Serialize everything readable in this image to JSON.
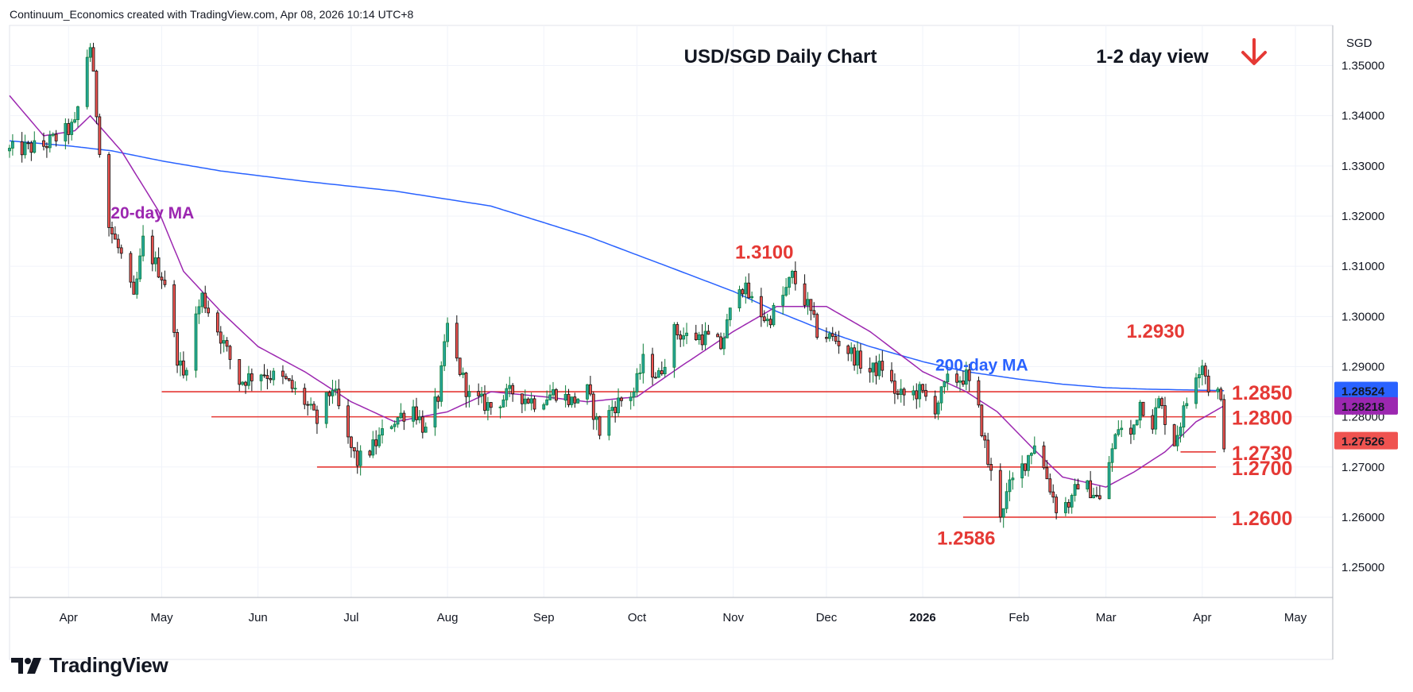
{
  "credit": "Continuum_Economics created with TradingView.com, Apr 08, 2026 10:14 UTC+8",
  "brand": "TradingView",
  "colors": {
    "up": "#26a69a",
    "down": "#ef5350",
    "ma20": "#9c27b0",
    "ma200": "#2962ff",
    "level": "#e53935",
    "annotation": "#e53935",
    "arrow": "#e53935",
    "badge_current": "#ef5350",
    "badge_ma200": "#2962ff",
    "badge_ma20": "#9c27b0",
    "grid": "#f0f3fa",
    "candle_up": "#0d7d3a",
    "candle_down": "#111111"
  },
  "chart_data": {
    "type": "candlestick",
    "title": "USD/SGD Daily Chart",
    "view_label": "1-2 day view",
    "view_direction": "down-arrow-icon",
    "currency_label": "SGD",
    "ylim": [
      1.244,
      1.358
    ],
    "yticks": [
      "1.25000",
      "1.26000",
      "1.27000",
      "1.28000",
      "1.29000",
      "1.30000",
      "1.31000",
      "1.32000",
      "1.33000",
      "1.34000",
      "1.35000"
    ],
    "xlim": [
      "2025-03-13",
      "2026-05-13"
    ],
    "xticks": [
      {
        "date": "2025-04-01",
        "label": "Apr"
      },
      {
        "date": "2025-05-01",
        "label": "May"
      },
      {
        "date": "2025-06-01",
        "label": "Jun"
      },
      {
        "date": "2025-07-01",
        "label": "Jul"
      },
      {
        "date": "2025-08-01",
        "label": "Aug"
      },
      {
        "date": "2025-09-01",
        "label": "Sep"
      },
      {
        "date": "2025-10-01",
        "label": "Oct"
      },
      {
        "date": "2025-11-01",
        "label": "Nov"
      },
      {
        "date": "2025-12-01",
        "label": "Dec"
      },
      {
        "date": "2026-01-01",
        "label": "2026",
        "bold": true
      },
      {
        "date": "2026-02-01",
        "label": "Feb"
      },
      {
        "date": "2026-03-01",
        "label": "Mar"
      },
      {
        "date": "2026-04-01",
        "label": "Apr"
      },
      {
        "date": "2026-05-01",
        "label": "May"
      }
    ],
    "price_anchors": [
      [
        "2025-03-13",
        1.333
      ],
      [
        "2025-03-24",
        1.334
      ],
      [
        "2025-04-03",
        1.338
      ],
      [
        "2025-04-07",
        1.352
      ],
      [
        "2025-04-08",
        1.354
      ],
      [
        "2025-04-11",
        1.334
      ],
      [
        "2025-04-14",
        1.318
      ],
      [
        "2025-04-18",
        1.312
      ],
      [
        "2025-04-22",
        1.303
      ],
      [
        "2025-04-25",
        1.315
      ],
      [
        "2025-05-02",
        1.307
      ],
      [
        "2025-05-06",
        1.292
      ],
      [
        "2025-05-08",
        1.288
      ],
      [
        "2025-05-12",
        1.3
      ],
      [
        "2025-05-14",
        1.304
      ],
      [
        "2025-05-20",
        1.296
      ],
      [
        "2025-05-26",
        1.287
      ],
      [
        "2025-06-02",
        1.289
      ],
      [
        "2025-06-10",
        1.287
      ],
      [
        "2025-06-16",
        1.283
      ],
      [
        "2025-06-20",
        1.279
      ],
      [
        "2025-06-25",
        1.286
      ],
      [
        "2025-06-30",
        1.275
      ],
      [
        "2025-07-03",
        1.271
      ],
      [
        "2025-07-08",
        1.274
      ],
      [
        "2025-07-14",
        1.279
      ],
      [
        "2025-07-21",
        1.282
      ],
      [
        "2025-07-25",
        1.277
      ],
      [
        "2025-07-29",
        1.284
      ],
      [
        "2025-08-01",
        1.298
      ],
      [
        "2025-08-04",
        1.291
      ],
      [
        "2025-08-08",
        1.284
      ],
      [
        "2025-08-15",
        1.282
      ],
      [
        "2025-08-22",
        1.285
      ],
      [
        "2025-08-29",
        1.283
      ],
      [
        "2025-09-05",
        1.285
      ],
      [
        "2025-09-10",
        1.283
      ],
      [
        "2025-09-15",
        1.285
      ],
      [
        "2025-09-19",
        1.277
      ],
      [
        "2025-09-23",
        1.282
      ],
      [
        "2025-09-30",
        1.285
      ],
      [
        "2025-10-03",
        1.291
      ],
      [
        "2025-10-08",
        1.288
      ],
      [
        "2025-10-13",
        1.297
      ],
      [
        "2025-10-17",
        1.296
      ],
      [
        "2025-10-23",
        1.296
      ],
      [
        "2025-10-28",
        1.294
      ],
      [
        "2025-11-03",
        1.307
      ],
      [
        "2025-11-07",
        1.303
      ],
      [
        "2025-11-12",
        1.299
      ],
      [
        "2025-11-17",
        1.304
      ],
      [
        "2025-11-20",
        1.308
      ],
      [
        "2025-11-25",
        1.302
      ],
      [
        "2025-11-28",
        1.297
      ],
      [
        "2025-12-05",
        1.295
      ],
      [
        "2025-12-10",
        1.292
      ],
      [
        "2025-12-15",
        1.289
      ],
      [
        "2025-12-19",
        1.29
      ],
      [
        "2025-12-24",
        1.284
      ],
      [
        "2025-12-31",
        1.285
      ],
      [
        "2026-01-05",
        1.282
      ],
      [
        "2026-01-09",
        1.287
      ],
      [
        "2026-01-15",
        1.288
      ],
      [
        "2026-01-19",
        1.281
      ],
      [
        "2026-01-22",
        1.271
      ],
      [
        "2026-01-26",
        1.261
      ],
      [
        "2026-01-29",
        1.266
      ],
      [
        "2026-02-03",
        1.271
      ],
      [
        "2026-02-06",
        1.275
      ],
      [
        "2026-02-10",
        1.268
      ],
      [
        "2026-02-13",
        1.262
      ],
      [
        "2026-02-18",
        1.263
      ],
      [
        "2026-02-20",
        1.267
      ],
      [
        "2026-02-25",
        1.265
      ],
      [
        "2026-02-27",
        1.263
      ],
      [
        "2026-03-02",
        1.271
      ],
      [
        "2026-03-05",
        1.278
      ],
      [
        "2026-03-09",
        1.276
      ],
      [
        "2026-03-12",
        1.283
      ],
      [
        "2026-03-16",
        1.279
      ],
      [
        "2026-03-18",
        1.283
      ],
      [
        "2026-03-23",
        1.275
      ],
      [
        "2026-03-26",
        1.281
      ],
      [
        "2026-03-30",
        1.289
      ],
      [
        "2026-04-01",
        1.291
      ],
      [
        "2026-04-03",
        1.286
      ],
      [
        "2026-04-06",
        1.285
      ],
      [
        "2026-04-07",
        1.2822
      ],
      [
        "2026-04-08",
        1.2752
      ]
    ],
    "ma20_anchors": [
      [
        "2025-03-13",
        1.344
      ],
      [
        "2025-03-24",
        1.336
      ],
      [
        "2025-04-03",
        1.337
      ],
      [
        "2025-04-08",
        1.34
      ],
      [
        "2025-04-18",
        1.333
      ],
      [
        "2025-04-30",
        1.321
      ],
      [
        "2025-05-08",
        1.309
      ],
      [
        "2025-05-20",
        1.301
      ],
      [
        "2025-06-01",
        1.294
      ],
      [
        "2025-06-16",
        1.289
      ],
      [
        "2025-07-01",
        1.283
      ],
      [
        "2025-07-15",
        1.279
      ],
      [
        "2025-08-01",
        1.281
      ],
      [
        "2025-08-15",
        1.285
      ],
      [
        "2025-09-01",
        1.284
      ],
      [
        "2025-09-15",
        1.283
      ],
      [
        "2025-10-01",
        1.284
      ],
      [
        "2025-10-15",
        1.29
      ],
      [
        "2025-11-01",
        1.297
      ],
      [
        "2025-11-15",
        1.302
      ],
      [
        "2025-12-01",
        1.302
      ],
      [
        "2025-12-15",
        1.297
      ],
      [
        "2026-01-01",
        1.289
      ],
      [
        "2026-01-15",
        1.285
      ],
      [
        "2026-01-25",
        1.281
      ],
      [
        "2026-02-05",
        1.274
      ],
      [
        "2026-02-15",
        1.268
      ],
      [
        "2026-03-01",
        1.266
      ],
      [
        "2026-03-10",
        1.269
      ],
      [
        "2026-03-20",
        1.273
      ],
      [
        "2026-03-30",
        1.279
      ],
      [
        "2026-04-08",
        1.2822
      ]
    ],
    "ma200_anchors": [
      [
        "2025-03-13",
        1.335
      ],
      [
        "2025-04-01",
        1.334
      ],
      [
        "2025-04-15",
        1.333
      ],
      [
        "2025-05-01",
        1.331
      ],
      [
        "2025-05-20",
        1.329
      ],
      [
        "2025-06-15",
        1.327
      ],
      [
        "2025-07-15",
        1.325
      ],
      [
        "2025-08-15",
        1.322
      ],
      [
        "2025-09-15",
        1.316
      ],
      [
        "2025-10-15",
        1.309
      ],
      [
        "2025-11-01",
        1.305
      ],
      [
        "2025-11-15",
        1.301
      ],
      [
        "2025-12-01",
        1.297
      ],
      [
        "2025-12-15",
        1.294
      ],
      [
        "2026-01-01",
        1.291
      ],
      [
        "2026-01-15",
        1.289
      ],
      [
        "2026-02-01",
        1.2875
      ],
      [
        "2026-02-15",
        1.2865
      ],
      [
        "2026-03-01",
        1.2858
      ],
      [
        "2026-03-15",
        1.2855
      ],
      [
        "2026-04-01",
        1.2853
      ],
      [
        "2026-04-08",
        1.2852
      ]
    ],
    "levels": [
      {
        "value": 1.285,
        "label": "1.2850",
        "from": "2025-05-01"
      },
      {
        "value": 1.28,
        "label": "1.2800",
        "from": "2025-05-17"
      },
      {
        "value": 1.273,
        "label": "1.2730",
        "from": "2026-03-25"
      },
      {
        "value": 1.27,
        "label": "1.2700",
        "from": "2025-06-20"
      },
      {
        "value": 1.26,
        "label": "1.2600",
        "from": "2026-01-14"
      }
    ],
    "annotations": [
      {
        "text": "20-day MA",
        "date": "2025-04-28",
        "price": 1.3195,
        "color": "ma20"
      },
      {
        "text": "200-day MA",
        "date": "2026-01-20",
        "price": 1.2892,
        "color": "ma200"
      },
      {
        "text": "1.3100",
        "date": "2025-11-11",
        "price": 1.3115,
        "color": "annotation"
      },
      {
        "text": "1.2930",
        "date": "2026-03-17",
        "price": 1.2958,
        "color": "annotation"
      },
      {
        "text": "1.2586",
        "date": "2026-01-15",
        "price": 1.2545,
        "color": "annotation"
      }
    ],
    "price_badges": [
      {
        "value": 1.28524,
        "label": "1.28524",
        "color": "badge_ma200"
      },
      {
        "value": 1.28218,
        "label": "1.28218",
        "color": "badge_ma20"
      },
      {
        "value": 1.27526,
        "label": "1.27526",
        "color": "badge_current"
      }
    ]
  }
}
